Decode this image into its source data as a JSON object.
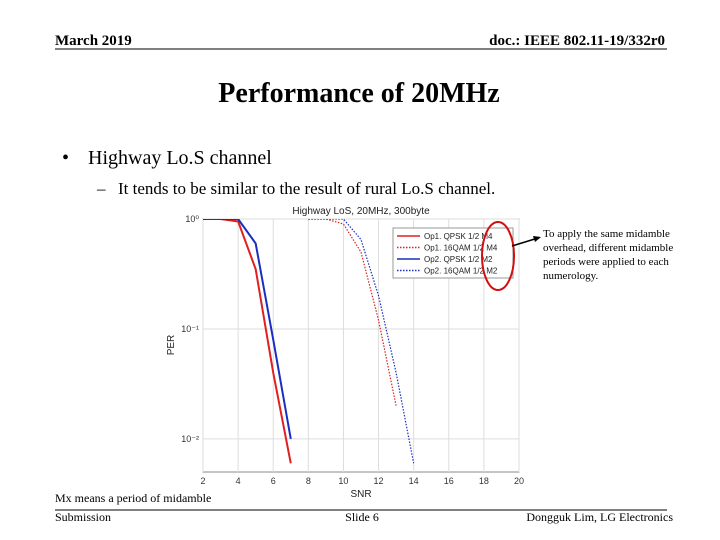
{
  "header": {
    "date": "March 2019",
    "doc": "doc.: IEEE 802.11-19/332r0"
  },
  "title": "Performance of 20MHz",
  "bullet": "Highway Lo.S channel",
  "sub_bullet": "It tends to be similar to the result of rural Lo.S channel.",
  "annotation": [
    "To apply the same midamble",
    "overhead, different midamble",
    "periods were applied to each",
    "numerology."
  ],
  "note": "Mx means a period of midamble",
  "footer": {
    "left": "Submission",
    "center": "Slide 6",
    "right": "Dongguk Lim, LG Electronics"
  },
  "chart_data": {
    "type": "line",
    "title": "Highway LoS, 20MHz, 300byte",
    "x_label": "SNR",
    "y_label": "PER",
    "log_y": true,
    "grid": true,
    "x": [
      2,
      3,
      4,
      5,
      6,
      7,
      8,
      9,
      10,
      11,
      12,
      13,
      14
    ],
    "series": [
      {
        "name": "Op1. QPSK 1/2 M4",
        "color": "#e02020",
        "dash": "solid",
        "values": [
          1,
          1,
          0.95,
          0.35,
          0.04,
          0.006,
          null,
          null,
          null,
          null,
          null,
          null,
          null
        ]
      },
      {
        "name": "Op1. 16QAM 1/2 M4",
        "color": "#e02020",
        "dash": "dotted",
        "values": [
          null,
          null,
          null,
          null,
          null,
          null,
          1,
          1,
          0.9,
          0.5,
          0.12,
          0.02,
          null
        ]
      },
      {
        "name": "Op2. QPSK 1/2 M2",
        "color": "#1a2fc0",
        "dash": "solid",
        "values": [
          1,
          1,
          1,
          0.6,
          0.08,
          0.01,
          null,
          null,
          null,
          null,
          null,
          null,
          null
        ]
      },
      {
        "name": "Op2. 16QAM 1/2 M2",
        "color": "#1a2fc0",
        "dash": "dotted",
        "values": [
          null,
          null,
          null,
          null,
          null,
          null,
          1,
          1,
          1,
          0.65,
          0.2,
          0.04,
          0.006
        ]
      }
    ],
    "xlim": [
      2,
      20
    ],
    "xticks": [
      2,
      4,
      6,
      8,
      10,
      12,
      14,
      16,
      18,
      20
    ],
    "ylim": [
      0.005,
      1
    ],
    "yticks": [
      {
        "value": 1,
        "label": "10⁰"
      },
      {
        "value": 0.1,
        "label": "10⁻¹"
      },
      {
        "value": 0.01,
        "label": "10⁻²"
      }
    ]
  }
}
